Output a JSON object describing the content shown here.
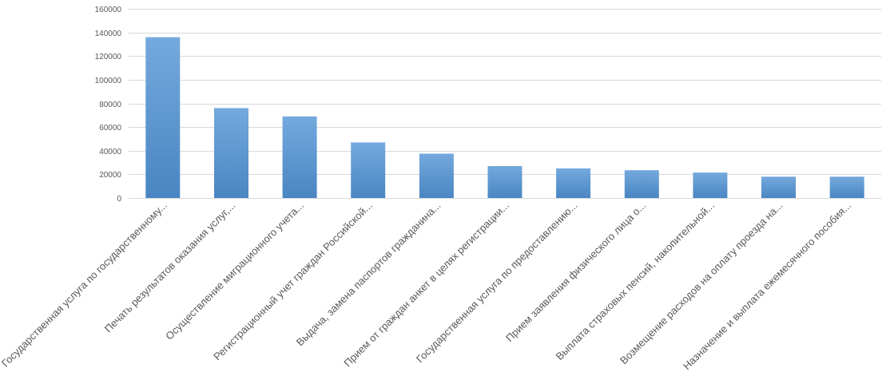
{
  "chart_data": {
    "type": "bar",
    "title": "",
    "xlabel": "",
    "ylabel": "",
    "ylim": [
      0,
      160000
    ],
    "yticks": [
      0,
      20000,
      40000,
      60000,
      80000,
      100000,
      120000,
      140000,
      160000
    ],
    "ytick_labels": [
      "0",
      "20000",
      "40000",
      "60000",
      "80000",
      "100000",
      "120000",
      "140000",
      "160000"
    ],
    "grid": true,
    "legend": "none",
    "bar_color": "#5b9bd5",
    "bar_color_top": "#74a9dc",
    "bar_color_bottom": "#4a86c3",
    "categories": [
      "Государственная услуга по государственному...",
      "Печать результатов оказания услуг,...",
      "Осуществление миграционного учета...",
      "Регистрационный учет граждан Российской...",
      "Выдача, замена паспортов гражданина...",
      "Прием от граждан анкет в целях регистрации...",
      "Государственная услуга по предоставлению...",
      "Прием заявления физического лица о...",
      "Выплата страховых пенсий, накопительной...",
      "Возмещение расходов на оплату проезда на...",
      "Назначение и выплата ежемесячного пособия..."
    ],
    "values": [
      136000,
      76000,
      69000,
      47000,
      37500,
      27000,
      25000,
      23500,
      21500,
      18000,
      18000
    ]
  }
}
